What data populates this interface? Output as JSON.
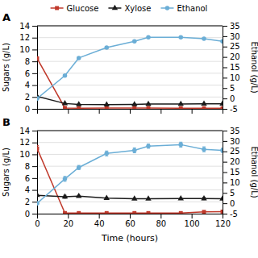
{
  "chart_data": [
    {
      "type": "line",
      "title": "A",
      "x": [
        0,
        18,
        27,
        45,
        63,
        72,
        93,
        108,
        120
      ],
      "series": [
        {
          "name": "Glucose",
          "color": "#c0392b",
          "marker": "square",
          "values": [
            8.5,
            0.15,
            0.1,
            0.15,
            0.15,
            0.15,
            0.1,
            0.1,
            0.1
          ],
          "errors": [
            0.3,
            0.05,
            0.05,
            0.05,
            0.05,
            0.05,
            0.05,
            0.05,
            0.05
          ]
        },
        {
          "name": "Xylose",
          "color": "#1a1a1a",
          "marker": "triangle",
          "values": [
            2.1,
            0.9,
            0.75,
            0.7,
            0.75,
            0.8,
            0.8,
            0.85,
            0.85
          ],
          "errors": [
            0.1,
            0.05,
            0.05,
            0.05,
            0.05,
            0.05,
            0.05,
            0.05,
            0.05
          ]
        },
        {
          "name": "Ethanol",
          "color": "#6baed6",
          "marker": "circle",
          "axis": "y2",
          "values": [
            0.0,
            11.0,
            19.5,
            24.5,
            27.5,
            29.5,
            29.5,
            28.8,
            27.5
          ],
          "errors": [
            0.2,
            0.5,
            0.5,
            0.5,
            0.5,
            0.5,
            0.5,
            0.4,
            0.5
          ]
        }
      ],
      "xlim": [
        0,
        120
      ],
      "xticks": [
        0,
        20,
        40,
        60,
        80,
        100,
        120
      ],
      "ylim": [
        0,
        14
      ],
      "yticks": [
        0,
        2,
        4,
        6,
        8,
        10,
        12,
        14
      ],
      "y2lim": [
        -5,
        35
      ],
      "y2ticks": [
        -5,
        0,
        5,
        10,
        15,
        20,
        25,
        30,
        35
      ],
      "ylabel": "Sugars (g/L)",
      "y2label": "Ethanol (g/L)",
      "grid": true,
      "legend": "top",
      "tick_labels": "y"
    },
    {
      "type": "line",
      "title": "B",
      "x": [
        0,
        18,
        27,
        45,
        63,
        72,
        93,
        108,
        120
      ],
      "series": [
        {
          "color": "#c0392b",
          "marker": "square",
          "values": [
            11.0,
            0.1,
            0.1,
            0.1,
            0.1,
            0.1,
            0.1,
            0.3,
            0.35
          ],
          "errors": [
            0.5,
            0.05,
            0.05,
            0.05,
            0.05,
            0.05,
            0.05,
            0.05,
            0.05
          ]
        },
        {
          "color": "#1a1a1a",
          "marker": "triangle",
          "values": [
            3.1,
            2.85,
            2.95,
            2.6,
            2.5,
            2.5,
            2.55,
            2.55,
            2.5
          ],
          "errors": [
            0.15,
            0.25,
            0.15,
            0.15,
            0.1,
            0.1,
            0.1,
            0.2,
            0.1
          ]
        },
        {
          "color": "#6baed6",
          "marker": "circle",
          "axis": "y2",
          "values": [
            0.0,
            11.75,
            17.25,
            24.0,
            25.5,
            27.5,
            28.25,
            26.0,
            25.5
          ],
          "errors": [
            0.2,
            1.2,
            1.0,
            1.2,
            1.2,
            1.0,
            1.2,
            1.2,
            1.0
          ]
        }
      ],
      "xlim": [
        0,
        120
      ],
      "xticks": [
        0,
        20,
        40,
        60,
        80,
        100,
        120
      ],
      "ylim": [
        0,
        14
      ],
      "yticks": [
        0,
        2,
        4,
        6,
        8,
        10,
        12,
        14
      ],
      "y2lim": [
        -5,
        35
      ],
      "y2ticks": [
        -5,
        0,
        5,
        10,
        15,
        20,
        25,
        30,
        35
      ],
      "xlabel": "Time (hours)",
      "ylabel": "Sugars (g/L)",
      "y2label": "Ethanol (g/L)",
      "grid": true
    }
  ]
}
